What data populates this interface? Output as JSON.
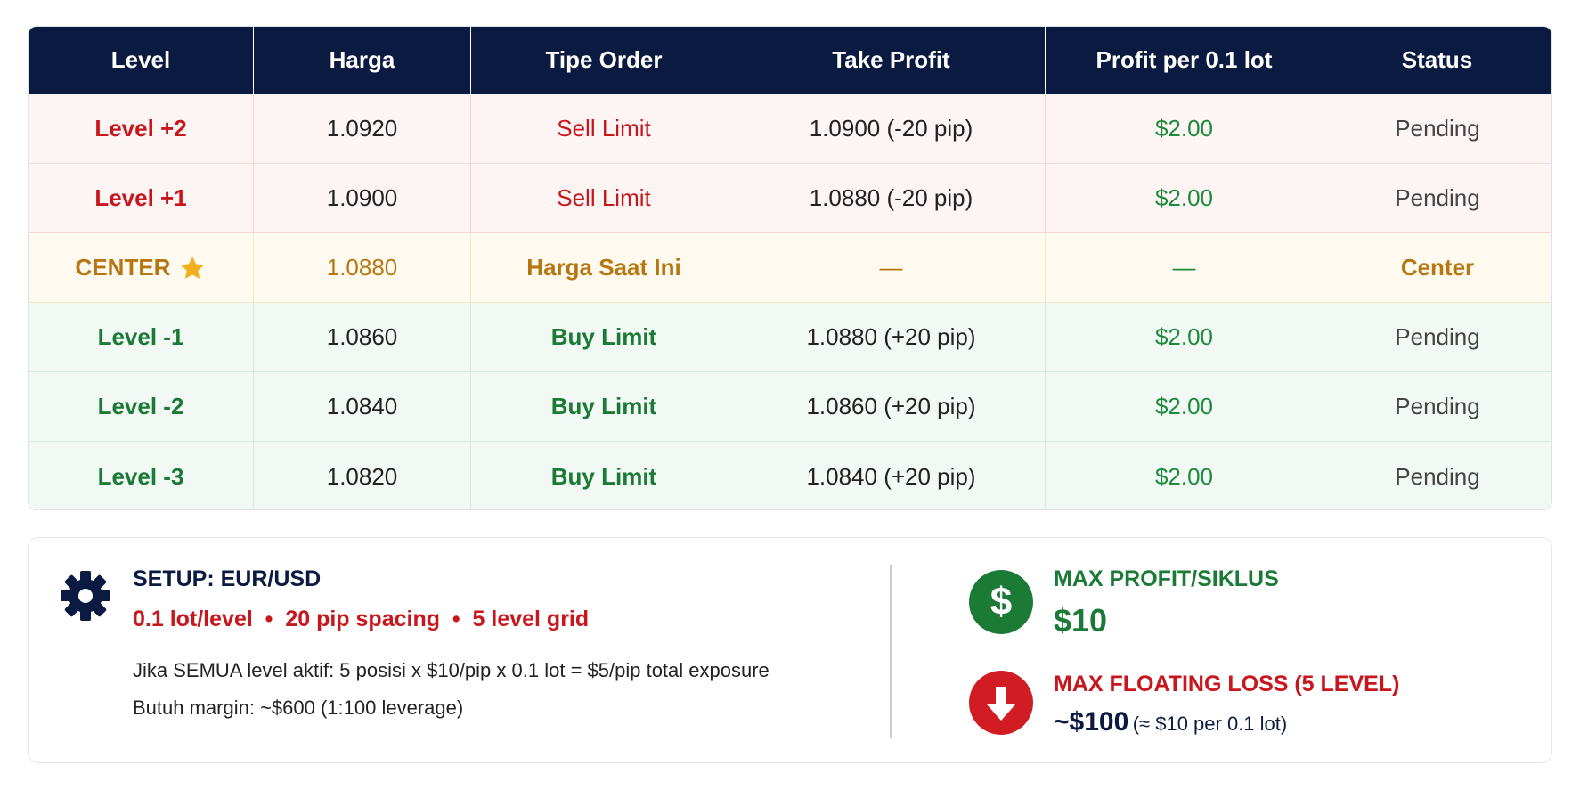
{
  "table": {
    "header": [
      "Level",
      "Harga",
      "Tipe Order",
      "Take Profit",
      "Profit per 0.1 lot",
      "Status"
    ],
    "rows": [
      [
        "Level +2",
        "1.0920",
        "Sell Limit",
        "1.0900 (-20 pip)",
        "$2.00",
        "Pending"
      ],
      [
        "Level +1",
        "1.0900",
        "Sell Limit",
        "1.0880 (-20 pip)",
        "$2.00",
        "Pending"
      ],
      [
        "CENTER",
        "1.0880",
        "Harga Saat Ini",
        "—",
        "—",
        "Center"
      ],
      [
        "Level -1",
        "1.0860",
        "Buy Limit",
        "1.0880 (+20 pip)",
        "$2.00",
        "Pending"
      ],
      [
        "Level -2",
        "1.0840",
        "Buy Limit",
        "1.0860 (+20 pip)",
        "$2.00",
        "Pending"
      ],
      [
        "Level -3",
        "1.0820",
        "Buy Limit",
        "1.0840 (+20 pip)",
        "$2.00",
        "Pending"
      ]
    ]
  },
  "setup": {
    "title": "SETUP: EUR/USD",
    "params": "0.1 lot/level  •  20 pip spacing  •  5 level grid",
    "lines": [
      "Jika SEMUA level aktif: 5 posisi x $10/pip x 0.1 lot = $5/pip total exposure",
      "Butuh margin: ~$600 (1:100 leverage)"
    ]
  },
  "max_profit": {
    "icon": "$",
    "label": "MAX PROFIT/SIKLUS",
    "value": "$10"
  },
  "max_loss": {
    "label": "MAX FLOATING LOSS (5 LEVEL)",
    "value": "~$100",
    "note": "(≈ $10 per 0.1 lot)"
  }
}
